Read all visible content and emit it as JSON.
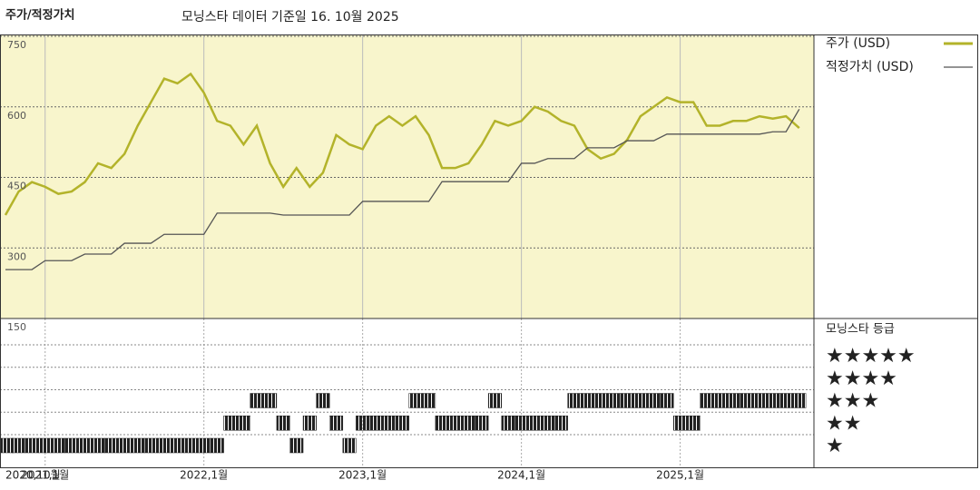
{
  "chart_data": {
    "type": "line",
    "title": "주가/적정가치",
    "subtitle": "모닝스타 데이터 기준일 16. 10월 2025",
    "categories": [
      "2020,10월",
      null,
      null,
      "2021,1월",
      null,
      null,
      null,
      null,
      null,
      null,
      null,
      null,
      null,
      null,
      null,
      "2022,1월",
      null,
      null,
      null,
      null,
      null,
      null,
      null,
      null,
      null,
      null,
      null,
      "2023,1월",
      null,
      null,
      null,
      null,
      null,
      null,
      null,
      null,
      null,
      null,
      null,
      "2024,1월",
      null,
      null,
      null,
      null,
      null,
      null,
      null,
      null,
      null,
      null,
      null,
      "2025,1월",
      null,
      null,
      null,
      null,
      null,
      null,
      null,
      null,
      null
    ],
    "series": [
      {
        "name": "주가 (USD)",
        "color": "#b3b32a",
        "values": [
          370,
          420,
          440,
          430,
          415,
          420,
          440,
          480,
          470,
          500,
          560,
          610,
          660,
          650,
          670,
          630,
          570,
          560,
          520,
          560,
          480,
          430,
          470,
          430,
          460,
          540,
          520,
          510,
          560,
          580,
          560,
          580,
          540,
          470,
          470,
          480,
          520,
          570,
          560,
          570,
          600,
          590,
          570,
          560,
          510,
          490,
          500,
          530,
          580,
          600,
          620,
          610,
          610,
          560,
          560,
          570,
          570,
          580,
          575,
          580,
          555
        ]
      },
      {
        "name": "적정가치 (USD)",
        "color": "#555555",
        "values": [
          254,
          254,
          254,
          273,
          273,
          273,
          287,
          287,
          287,
          310,
          310,
          310,
          329,
          329,
          329,
          329,
          374,
          374,
          374,
          374,
          374,
          370,
          370,
          370,
          370,
          370,
          370,
          399,
          399,
          399,
          399,
          399,
          399,
          441,
          441,
          441,
          441,
          441,
          441,
          480,
          480,
          490,
          490,
          490,
          513,
          513,
          513,
          528,
          528,
          528,
          542,
          542,
          542,
          542,
          542,
          542,
          542,
          542,
          547,
          547,
          595
        ]
      }
    ],
    "ylim": [
      150,
      750
    ],
    "yticks": [
      150,
      300,
      450,
      600,
      750
    ],
    "grid": true,
    "rating_title": "모닝스타 등급",
    "rating_labels": [
      "★",
      "★★",
      "★★★",
      "★★★★",
      "★★★★★"
    ],
    "rating_color": "#222222",
    "ratings": [
      1,
      1,
      1,
      1,
      1,
      1,
      1,
      1,
      1,
      1,
      1,
      1,
      1,
      1,
      1,
      1,
      1,
      2,
      2,
      3,
      3,
      2,
      1,
      2,
      3,
      2,
      1,
      2,
      2,
      2,
      2,
      3,
      3,
      2,
      2,
      2,
      2,
      3,
      2,
      2,
      2,
      2,
      2,
      3,
      3,
      3,
      3,
      3,
      3,
      3,
      3,
      2,
      2,
      3,
      3,
      3,
      3,
      3,
      3,
      3,
      3
    ]
  }
}
